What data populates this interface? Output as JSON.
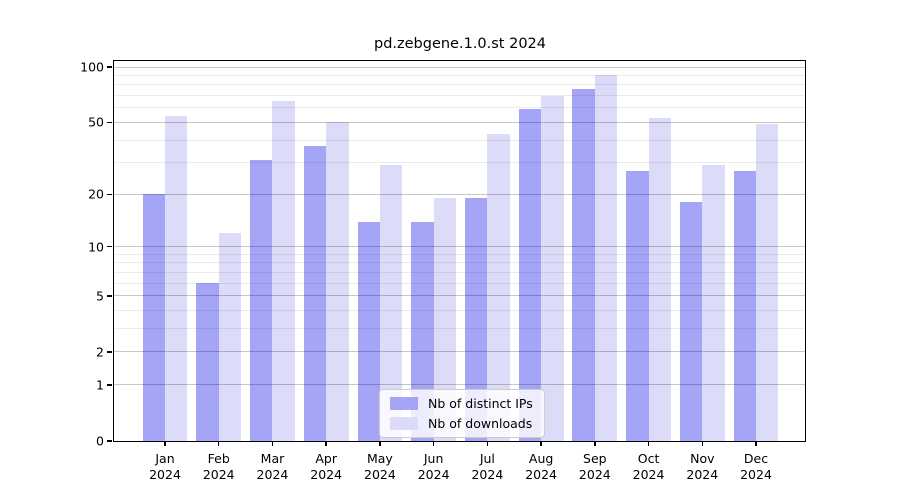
{
  "title": "pd.zebgene.1.0.st 2024",
  "chart_data": {
    "type": "bar",
    "title": "pd.zebgene.1.0.st 2024",
    "yscale": "log10(1+y)",
    "ylim": [
      0,
      111
    ],
    "yticks": [
      0,
      1,
      2,
      5,
      10,
      20,
      50,
      100
    ],
    "minor_gridlines": [
      3,
      4,
      6,
      7,
      8,
      9,
      30,
      40,
      60,
      70,
      80,
      90
    ],
    "grid": "on",
    "legend_position": "inside-bottom-center",
    "year": "2024",
    "months": [
      "Jan",
      "Feb",
      "Mar",
      "Apr",
      "May",
      "Jun",
      "Jul",
      "Aug",
      "Sep",
      "Oct",
      "Nov",
      "Dec"
    ],
    "categories": [
      "Jan 2024",
      "Feb 2024",
      "Mar 2024",
      "Apr 2024",
      "May 2024",
      "Jun 2024",
      "Jul 2024",
      "Aug 2024",
      "Sep 2024",
      "Oct 2024",
      "Nov 2024",
      "Dec 2024"
    ],
    "series": [
      {
        "key": "ips",
        "name": "Nb of distinct IPs",
        "color": "#a5a5f7",
        "values": [
          20,
          6,
          31,
          37,
          14,
          14,
          19,
          59,
          76,
          27,
          18,
          27
        ]
      },
      {
        "key": "downloads",
        "name": "Nb of downloads",
        "color": "#dcdcf9",
        "values": [
          54,
          12,
          65,
          50,
          29,
          19,
          43,
          70,
          90,
          53,
          29,
          49
        ]
      }
    ],
    "colors": {
      "axis": "#000000",
      "major_grid": "#c9c9c9",
      "minor_grid": "#ececec",
      "background": "#ffffff"
    }
  }
}
